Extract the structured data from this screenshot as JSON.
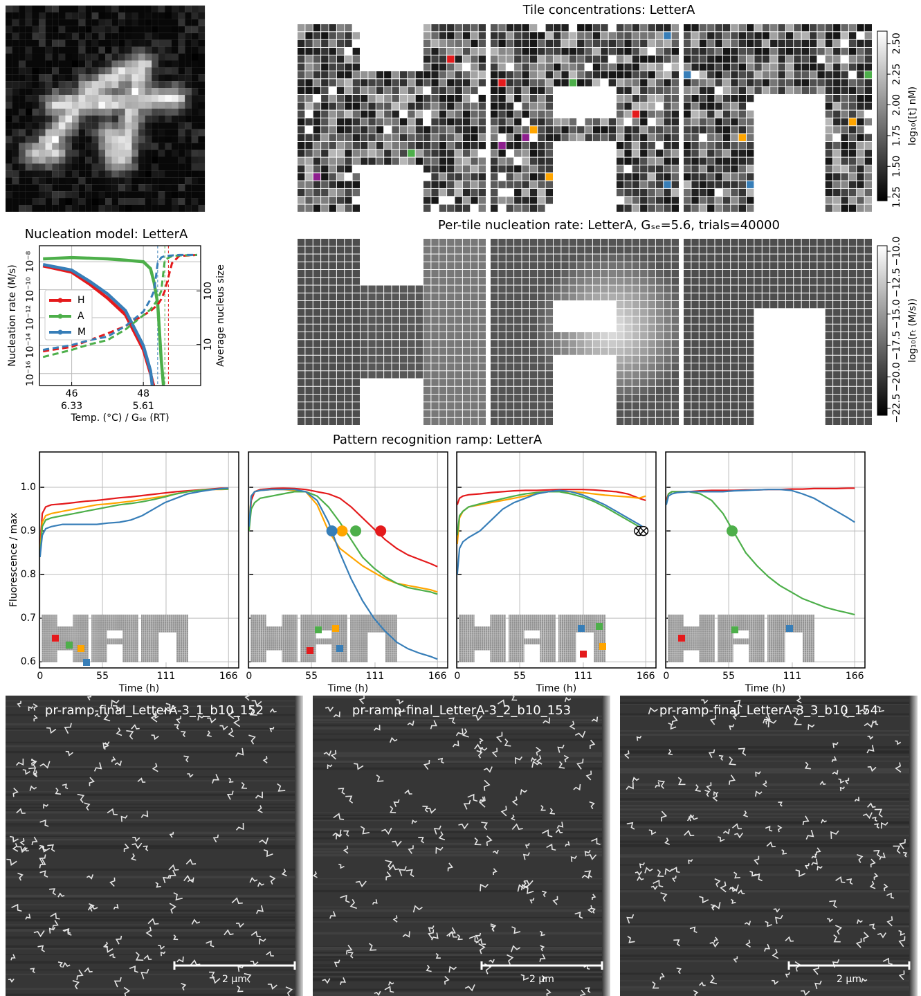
{
  "chart_data": [
    {
      "type": "heatmap",
      "title": "Tile concentrations: LetterA",
      "colorbar_label": "log₁₀([t] nM)",
      "colormap": "gray",
      "clim": [
        1.22,
        2.6
      ],
      "cticks": [
        1.25,
        {
          "value": 1.5,
          "label": "1.50"
        },
        1.75,
        {
          "value": 2,
          "label": "2.00"
        },
        2.25,
        {
          "value": 2.5,
          "label": "2.50"
        }
      ]
    },
    {
      "type": "heatmap",
      "title": "Per-tile nucleation rate: LetterA, Gₛₑ=5.6, trials=40000",
      "colorbar_label": "log₁₀(rₜ (M/s))",
      "colormap": "gray",
      "clim": [
        -23.05,
        -9.56
      ],
      "cticks": [
        {
          "value": -22.5,
          "label": "−22.5"
        },
        {
          "value": -20,
          "label": "−20.0"
        },
        {
          "value": -17.5,
          "label": "−17.5"
        },
        {
          "value": -15,
          "label": "−15.0"
        },
        {
          "value": -12.5,
          "label": "−12.5"
        },
        {
          "value": -10,
          "label": "−10.0"
        }
      ]
    },
    {
      "type": "line",
      "title": "Nucleation model: LetterA",
      "xlabel": "Temp. (°C) / Gₛₑ (RT)",
      "ylabel": "Nucleation rate (M/s)",
      "y2label": "Average nucleus size",
      "xlim": [
        45.1,
        49.6
      ],
      "xticks": [
        46,
        48
      ],
      "xticks2": [
        {
          "value": 46,
          "label": "6.33"
        },
        {
          "value": 48,
          "label": "5.61"
        }
      ],
      "ylim": [
        1.4e-17,
        1.4e-07
      ],
      "yscale": "log",
      "yticks": [
        {
          "value": 1e-16,
          "label": "10⁻¹⁶"
        },
        {
          "value": 1e-14,
          "label": "10⁻¹⁴"
        },
        {
          "value": 1e-12,
          "label": "10⁻¹²"
        },
        {
          "value": 1e-10,
          "label": "10⁻¹⁰"
        },
        {
          "value": 1e-08,
          "label": "10⁻⁸"
        }
      ],
      "y2lim": [
        1.7,
        700
      ],
      "y2scale": "log",
      "y2ticks": [
        10,
        100
      ],
      "grid": true,
      "legend": "center left",
      "x": [
        45.2,
        46,
        46.5,
        47,
        47.5,
        48,
        48.2,
        48.3,
        48.4,
        48.5,
        48.6,
        48.8,
        49,
        49.5
      ],
      "series": [
        {
          "name": "H",
          "color": "#e41a1c",
          "style": "solid",
          "values": [
            5e-09,
            1.8e-09,
            2.5e-10,
            2.5e-11,
            1.6e-12,
            5e-15,
            1e-16,
            1e-17,
            1e-18,
            null,
            null,
            null,
            null,
            null
          ]
        },
        {
          "name": "A",
          "color": "#4daf4a",
          "style": "solid",
          "values": [
            1.6e-08,
            2e-08,
            1.8e-08,
            1.6e-08,
            1.3e-08,
            1e-08,
            3.2e-09,
            3.2e-10,
            1e-11,
            1e-15,
            1e-18,
            null,
            null,
            null
          ]
        },
        {
          "name": "M",
          "color": "#377eb8",
          "style": "solid",
          "values": [
            6.3e-09,
            2.5e-09,
            4e-10,
            5e-11,
            3.2e-12,
            1e-14,
            1.6e-16,
            1e-18,
            null,
            null,
            null,
            null,
            null,
            null
          ]
        },
        {
          "color": "#e41a1c",
          "style": "dashed",
          "axis": "y2",
          "values": [
            7.4,
            9,
            12,
            16,
            22,
            35,
            42,
            48,
            55,
            70,
            100,
            330,
            450,
            470
          ]
        },
        {
          "color": "#4daf4a",
          "style": "dashed",
          "axis": "y2",
          "values": [
            5.8,
            7.9,
            10,
            12,
            19,
            35,
            45,
            55,
            70,
            100,
            380,
            450,
            460,
            470
          ]
        },
        {
          "color": "#377eb8",
          "style": "dashed",
          "axis": "y2",
          "values": [
            7.9,
            9.7,
            12,
            14,
            22,
            41,
            70,
            100,
            330,
            420,
            450,
            460,
            470,
            470
          ]
        }
      ],
      "vlines": [
        {
          "value": 48.4,
          "color": "#377eb8"
        },
        {
          "value": 48.6,
          "color": "#4daf4a"
        },
        {
          "value": 48.7,
          "color": "#e41a1c"
        }
      ]
    },
    {
      "type": "line",
      "title": "Pattern recognition ramp: LetterA",
      "ylabel": "Fluorescence / max",
      "xlabel": "Time (h)",
      "xlim": [
        -0.5,
        175
      ],
      "xticks": [
        0,
        55,
        111,
        166
      ],
      "ylim": [
        0.586,
        1.081
      ],
      "yticks": [
        0.6,
        0.7,
        0.8,
        0.9,
        {
          "value": 1,
          "label": "1.0"
        }
      ],
      "grid": true,
      "x": [
        0,
        2,
        5,
        10,
        20,
        30,
        40,
        50,
        60,
        70,
        80,
        90,
        100,
        110,
        120,
        130,
        140,
        150,
        160,
        166
      ],
      "series": [
        {
          "color": "#e41a1c",
          "values": [
            0.86,
            0.94,
            0.955,
            0.96,
            0.962,
            0.965,
            0.968,
            0.97,
            0.973,
            0.976,
            0.978,
            0.981,
            0.984,
            0.987,
            0.99,
            0.992,
            0.994,
            0.996,
            0.998,
            0.998
          ]
        },
        {
          "color": "#ffa500",
          "values": [
            0.85,
            0.92,
            0.935,
            0.94,
            0.945,
            0.95,
            0.955,
            0.96,
            0.962,
            0.965,
            0.968,
            0.972,
            0.976,
            0.98,
            0.985,
            0.99,
            0.993,
            0.995,
            0.995,
            0.996
          ]
        },
        {
          "color": "#4daf4a",
          "values": [
            0.84,
            0.91,
            0.925,
            0.93,
            0.935,
            0.94,
            0.945,
            0.95,
            0.955,
            0.96,
            0.963,
            0.967,
            0.972,
            0.978,
            0.985,
            0.99,
            0.993,
            0.995,
            0.996,
            0.996
          ]
        },
        {
          "color": "#377eb8",
          "values": [
            0.84,
            0.89,
            0.905,
            0.91,
            0.915,
            0.915,
            0.915,
            0.915,
            0.918,
            0.92,
            0.925,
            0.935,
            0.95,
            0.965,
            0.975,
            0.985,
            0.99,
            0.994,
            0.997,
            0.998
          ]
        }
      ]
    },
    {
      "type": "line",
      "xlabel": "Time (h)",
      "ytick_labels": false,
      "marker_style": "filled",
      "xlim": [
        -0.5,
        175
      ],
      "xticks": [
        0,
        55,
        111,
        166
      ],
      "ylim": [
        0.586,
        1.081
      ],
      "yticks": [
        0.6,
        0.7,
        0.8,
        0.9,
        1
      ],
      "grid": true,
      "x": [
        0,
        2,
        5,
        10,
        20,
        30,
        40,
        50,
        60,
        70,
        80,
        90,
        100,
        110,
        120,
        130,
        140,
        150,
        160,
        166
      ],
      "series": [
        {
          "color": "#e41a1c",
          "values": [
            0.9,
            0.97,
            0.99,
            0.995,
            0.997,
            0.998,
            0.997,
            0.995,
            0.99,
            0.985,
            0.975,
            0.955,
            0.93,
            0.905,
            0.88,
            0.86,
            0.845,
            0.835,
            0.825,
            0.818
          ],
          "marker_x": 116,
          "marker_y": 0.9
        },
        {
          "color": "#ffa500",
          "values": [
            0.92,
            0.98,
            0.99,
            0.993,
            0.995,
            0.995,
            0.993,
            0.99,
            0.96,
            0.9,
            0.86,
            0.84,
            0.82,
            0.805,
            0.79,
            0.78,
            0.775,
            0.77,
            0.765,
            0.76
          ],
          "marker_x": 82,
          "marker_y": 0.9
        },
        {
          "color": "#4daf4a",
          "values": [
            0.9,
            0.95,
            0.965,
            0.975,
            0.98,
            0.985,
            0.99,
            0.99,
            0.98,
            0.955,
            0.92,
            0.88,
            0.84,
            0.815,
            0.795,
            0.78,
            0.77,
            0.765,
            0.76,
            0.755
          ],
          "marker_x": 94,
          "marker_y": 0.9
        },
        {
          "color": "#377eb8",
          "values": [
            0.91,
            0.98,
            0.99,
            0.993,
            0.995,
            0.995,
            0.995,
            0.99,
            0.97,
            0.92,
            0.85,
            0.79,
            0.74,
            0.7,
            0.67,
            0.645,
            0.63,
            0.62,
            0.612,
            0.606
          ],
          "marker_x": 73,
          "marker_y": 0.9
        }
      ]
    },
    {
      "type": "line",
      "xlabel": "Time (h)",
      "ytick_labels": false,
      "marker_style": "crossed",
      "xlim": [
        -0.5,
        175
      ],
      "xticks": [
        0,
        55,
        111,
        166
      ],
      "ylim": [
        0.586,
        1.081
      ],
      "yticks": [
        0.6,
        0.7,
        0.8,
        0.9,
        1
      ],
      "grid": true,
      "x": [
        0,
        2,
        5,
        10,
        20,
        30,
        40,
        50,
        60,
        70,
        80,
        90,
        100,
        110,
        120,
        130,
        140,
        150,
        160,
        166
      ],
      "series": [
        {
          "color": "#e41a1c",
          "values": [
            0.96,
            0.975,
            0.98,
            0.983,
            0.985,
            0.988,
            0.99,
            0.992,
            0.993,
            0.993,
            0.994,
            0.995,
            0.995,
            0.995,
            0.994,
            0.992,
            0.99,
            0.985,
            0.975,
            0.97
          ]
        },
        {
          "color": "#ffa500",
          "values": [
            0.87,
            0.93,
            0.945,
            0.955,
            0.96,
            0.965,
            0.97,
            0.975,
            0.98,
            0.985,
            0.99,
            0.99,
            0.99,
            0.988,
            0.985,
            0.982,
            0.98,
            0.978,
            0.975,
            0.98
          ]
        },
        {
          "color": "#4daf4a",
          "values": [
            0.89,
            0.935,
            0.945,
            0.955,
            0.962,
            0.968,
            0.974,
            0.98,
            0.985,
            0.988,
            0.99,
            0.99,
            0.985,
            0.978,
            0.968,
            0.955,
            0.94,
            0.925,
            0.91,
            0.905
          ],
          "marker_x": 160,
          "marker_y": 0.9
        },
        {
          "color": "#377eb8",
          "values": [
            0.8,
            0.86,
            0.875,
            0.885,
            0.9,
            0.925,
            0.95,
            0.965,
            0.975,
            0.985,
            0.99,
            0.993,
            0.99,
            0.983,
            0.972,
            0.96,
            0.945,
            0.93,
            0.915,
            0.905
          ],
          "marker_x": 164,
          "marker_y": 0.9
        }
      ]
    },
    {
      "type": "line",
      "xlabel": "Time (h)",
      "ytick_labels": false,
      "marker_style": "filled",
      "xlim": [
        -0.5,
        175
      ],
      "xticks": [
        0,
        55,
        111,
        166
      ],
      "ylim": [
        0.586,
        1.081
      ],
      "yticks": [
        0.6,
        0.7,
        0.8,
        0.9,
        1
      ],
      "grid": true,
      "x": [
        0,
        2,
        5,
        10,
        20,
        30,
        40,
        50,
        60,
        70,
        80,
        90,
        100,
        110,
        120,
        130,
        140,
        150,
        160,
        166
      ],
      "series": [
        {
          "color": "#e41a1c",
          "values": [
            0.97,
            0.985,
            0.99,
            0.99,
            0.99,
            0.992,
            0.993,
            0.993,
            0.993,
            0.994,
            0.994,
            0.995,
            0.995,
            0.996,
            0.996,
            0.997,
            0.997,
            0.997,
            0.998,
            0.998
          ]
        },
        {
          "color": "#4daf4a",
          "values": [
            0.96,
            0.985,
            0.99,
            0.99,
            0.99,
            0.985,
            0.97,
            0.94,
            0.895,
            0.85,
            0.82,
            0.795,
            0.775,
            0.76,
            0.745,
            0.735,
            0.725,
            0.718,
            0.712,
            0.708
          ],
          "marker_x": 58,
          "marker_y": 0.9
        },
        {
          "color": "#377eb8",
          "values": [
            0.96,
            0.98,
            0.985,
            0.988,
            0.99,
            0.99,
            0.99,
            0.99,
            0.992,
            0.993,
            0.994,
            0.995,
            0.995,
            0.993,
            0.985,
            0.975,
            0.96,
            0.945,
            0.93,
            0.92
          ]
        }
      ]
    }
  ],
  "images": [
    {
      "title": "pr-ramp-final_LetterA-3_1_b10_152",
      "scale_bar_label": "2 µm"
    },
    {
      "title": "pr-ramp-final_LetterA-3_2_b10_153",
      "scale_bar_label": "2 µm"
    },
    {
      "title": "pr-ramp-final_LetterA-3_3_b10_154",
      "scale_bar_label": "2 µm"
    }
  ]
}
